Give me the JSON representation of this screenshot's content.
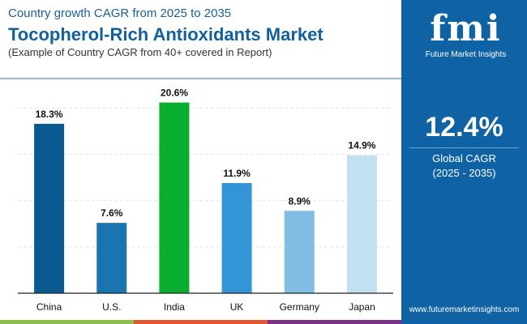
{
  "header": {
    "subtitle": "Country growth CAGR from 2025 to 2035",
    "title": "Tocopherol-Rich Antioxidants Market",
    "note": "(Example of Country CAGR from 40+ covered in Report)"
  },
  "panel": {
    "logo_text": "fmi",
    "brand": "Future Market Insights",
    "global_value": "12.4%",
    "global_label": "Global CAGR",
    "period": "(2025 - 2035)",
    "url": "www.futuremarketinsights.com"
  },
  "chart_data": {
    "type": "bar",
    "categories": [
      "China",
      "U.S.",
      "India",
      "UK",
      "Germany",
      "Japan"
    ],
    "values": [
      18.3,
      7.6,
      20.6,
      11.9,
      8.9,
      14.9
    ],
    "labels": [
      "18.3%",
      "7.6%",
      "20.6%",
      "11.9%",
      "8.9%",
      "14.9%"
    ],
    "colors": [
      "#0a5a92",
      "#1a74b0",
      "#0aae2e",
      "#3395d5",
      "#80bde3",
      "#c2e0f2"
    ],
    "ylim": [
      0,
      21
    ],
    "grid": true
  },
  "colors": {
    "accent": "#0f62a3",
    "strip": [
      "#8cc04a",
      "#e4572e",
      "#7a3187"
    ]
  }
}
